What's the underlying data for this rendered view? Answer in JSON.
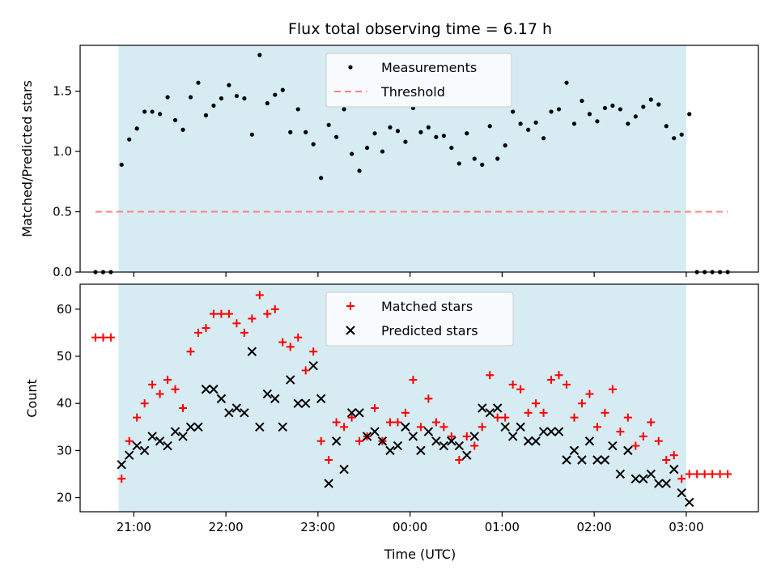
{
  "chart_data": [
    {
      "type": "scatter",
      "title": "Flux total observing time = 6.17 h",
      "xlabel": "",
      "ylabel": "Matched/Predicted stars",
      "xlim": [
        "20:25",
        "03:47"
      ],
      "ylim": [
        0,
        1.88
      ],
      "yticks": [
        0.0,
        0.5,
        1.0,
        1.5
      ],
      "ytick_labels": [
        "0.0",
        "0.5",
        "1.0",
        "1.5"
      ],
      "shaded_span": [
        "20:50",
        "03:00"
      ],
      "shade_color": "#add8e6",
      "legend_position": "top-center",
      "series": [
        {
          "name": "Measurements",
          "style": "dot",
          "color": "#000000",
          "points": [
            [
              "20:35",
              0
            ],
            [
              "20:40",
              0
            ],
            [
              "20:45",
              0
            ],
            [
              "20:52",
              0.89
            ],
            [
              "20:57",
              1.1
            ],
            [
              "21:02",
              1.19
            ],
            [
              "21:07",
              1.33
            ],
            [
              "21:12",
              1.33
            ],
            [
              "21:17",
              1.31
            ],
            [
              "21:22",
              1.45
            ],
            [
              "21:27",
              1.26
            ],
            [
              "21:32",
              1.18
            ],
            [
              "21:37",
              1.45
            ],
            [
              "21:42",
              1.57
            ],
            [
              "21:47",
              1.3
            ],
            [
              "21:52",
              1.38
            ],
            [
              "21:57",
              1.44
            ],
            [
              "22:02",
              1.55
            ],
            [
              "22:07",
              1.46
            ],
            [
              "22:12",
              1.44
            ],
            [
              "22:17",
              1.14
            ],
            [
              "22:22",
              1.8
            ],
            [
              "22:27",
              1.4
            ],
            [
              "22:32",
              1.47
            ],
            [
              "22:37",
              1.51
            ],
            [
              "22:42",
              1.16
            ],
            [
              "22:47",
              1.35
            ],
            [
              "22:52",
              1.16
            ],
            [
              "22:57",
              1.06
            ],
            [
              "23:02",
              0.78
            ],
            [
              "23:07",
              1.22
            ],
            [
              "23:12",
              1.12
            ],
            [
              "23:17",
              1.35
            ],
            [
              "23:22",
              0.98
            ],
            [
              "23:27",
              0.84
            ],
            [
              "23:32",
              1.03
            ],
            [
              "23:37",
              1.15
            ],
            [
              "23:42",
              1.0
            ],
            [
              "23:47",
              1.2
            ],
            [
              "23:52",
              1.17
            ],
            [
              "23:57",
              1.08
            ],
            [
              "00:02",
              1.36
            ],
            [
              "00:07",
              1.16
            ],
            [
              "00:12",
              1.2
            ],
            [
              "00:17",
              1.12
            ],
            [
              "00:22",
              1.13
            ],
            [
              "00:27",
              1.03
            ],
            [
              "00:32",
              0.9
            ],
            [
              "00:37",
              1.15
            ],
            [
              "00:42",
              0.94
            ],
            [
              "00:47",
              0.89
            ],
            [
              "00:52",
              1.21
            ],
            [
              "00:57",
              0.94
            ],
            [
              "01:02",
              1.05
            ],
            [
              "01:07",
              1.33
            ],
            [
              "01:12",
              1.23
            ],
            [
              "01:17",
              1.18
            ],
            [
              "01:22",
              1.24
            ],
            [
              "01:27",
              1.11
            ],
            [
              "01:32",
              1.33
            ],
            [
              "01:37",
              1.35
            ],
            [
              "01:42",
              1.57
            ],
            [
              "01:47",
              1.23
            ],
            [
              "01:52",
              1.42
            ],
            [
              "01:57",
              1.31
            ],
            [
              "02:02",
              1.25
            ],
            [
              "02:07",
              1.36
            ],
            [
              "02:12",
              1.38
            ],
            [
              "02:17",
              1.35
            ],
            [
              "02:22",
              1.23
            ],
            [
              "02:27",
              1.29
            ],
            [
              "02:32",
              1.37
            ],
            [
              "02:37",
              1.43
            ],
            [
              "02:42",
              1.39
            ],
            [
              "02:47",
              1.21
            ],
            [
              "02:52",
              1.11
            ],
            [
              "02:57",
              1.14
            ],
            [
              "03:02",
              1.31
            ],
            [
              "03:07",
              0
            ],
            [
              "03:12",
              0
            ],
            [
              "03:17",
              0
            ],
            [
              "03:22",
              0
            ],
            [
              "03:27",
              0
            ]
          ]
        },
        {
          "name": "Threshold",
          "style": "dashed-line",
          "color": "#ff8080",
          "points": [
            [
              "20:35",
              0.5
            ],
            [
              "03:27",
              0.5
            ]
          ]
        }
      ]
    },
    {
      "type": "scatter",
      "title": "",
      "xlabel": "Time (UTC)",
      "ylabel": "Count",
      "xlim": [
        "20:25",
        "03:47"
      ],
      "ylim": [
        17,
        65.3
      ],
      "yticks": [
        20,
        30,
        40,
        50,
        60
      ],
      "ytick_labels": [
        "20",
        "30",
        "40",
        "50",
        "60"
      ],
      "xticks": [
        "21:00",
        "22:00",
        "23:00",
        "00:00",
        "01:00",
        "02:00",
        "03:00"
      ],
      "xtick_labels": [
        "21:00",
        "22:00",
        "23:00",
        "00:00",
        "01:00",
        "02:00",
        "03:00"
      ],
      "shaded_span": [
        "20:50",
        "03:00"
      ],
      "shade_color": "#add8e6",
      "legend_position": "top-center",
      "series": [
        {
          "name": "Matched stars",
          "style": "plus",
          "color": "#ff0000",
          "points": [
            [
              "20:35",
              54
            ],
            [
              "20:40",
              54
            ],
            [
              "20:45",
              54
            ],
            [
              "20:52",
              24
            ],
            [
              "20:57",
              32
            ],
            [
              "21:02",
              37
            ],
            [
              "21:07",
              40
            ],
            [
              "21:12",
              44
            ],
            [
              "21:17",
              42
            ],
            [
              "21:22",
              45
            ],
            [
              "21:27",
              43
            ],
            [
              "21:32",
              39
            ],
            [
              "21:37",
              51
            ],
            [
              "21:42",
              55
            ],
            [
              "21:47",
              56
            ],
            [
              "21:52",
              59
            ],
            [
              "21:57",
              59
            ],
            [
              "22:02",
              59
            ],
            [
              "22:07",
              57
            ],
            [
              "22:12",
              55
            ],
            [
              "22:17",
              58
            ],
            [
              "22:22",
              63
            ],
            [
              "22:27",
              59
            ],
            [
              "22:32",
              60
            ],
            [
              "22:37",
              53
            ],
            [
              "22:42",
              52
            ],
            [
              "22:47",
              54
            ],
            [
              "22:52",
              47
            ],
            [
              "22:57",
              51
            ],
            [
              "23:02",
              32
            ],
            [
              "23:07",
              28
            ],
            [
              "23:12",
              36
            ],
            [
              "23:17",
              35
            ],
            [
              "23:22",
              37
            ],
            [
              "23:27",
              32
            ],
            [
              "23:32",
              33
            ],
            [
              "23:37",
              39
            ],
            [
              "23:42",
              32
            ],
            [
              "23:47",
              36
            ],
            [
              "23:52",
              36
            ],
            [
              "23:57",
              38
            ],
            [
              "00:02",
              45
            ],
            [
              "00:07",
              35
            ],
            [
              "00:12",
              41
            ],
            [
              "00:17",
              36
            ],
            [
              "00:22",
              35
            ],
            [
              "00:27",
              33
            ],
            [
              "00:32",
              28
            ],
            [
              "00:37",
              33
            ],
            [
              "00:42",
              31
            ],
            [
              "00:47",
              35
            ],
            [
              "00:52",
              46
            ],
            [
              "00:57",
              37
            ],
            [
              "01:02",
              37
            ],
            [
              "01:07",
              44
            ],
            [
              "01:12",
              43
            ],
            [
              "01:17",
              38
            ],
            [
              "01:22",
              40
            ],
            [
              "01:27",
              38
            ],
            [
              "01:32",
              45
            ],
            [
              "01:37",
              46
            ],
            [
              "01:42",
              44
            ],
            [
              "01:47",
              37
            ],
            [
              "01:52",
              40
            ],
            [
              "01:57",
              42
            ],
            [
              "02:02",
              35
            ],
            [
              "02:07",
              38
            ],
            [
              "02:12",
              43
            ],
            [
              "02:17",
              34
            ],
            [
              "02:22",
              37
            ],
            [
              "02:27",
              31
            ],
            [
              "02:32",
              33
            ],
            [
              "02:37",
              36
            ],
            [
              "02:42",
              32
            ],
            [
              "02:47",
              28
            ],
            [
              "02:52",
              29
            ],
            [
              "02:57",
              24
            ],
            [
              "03:02",
              25
            ],
            [
              "03:07",
              25
            ],
            [
              "03:12",
              25
            ],
            [
              "03:17",
              25
            ],
            [
              "03:22",
              25
            ],
            [
              "03:27",
              25
            ]
          ]
        },
        {
          "name": "Predicted stars",
          "style": "x",
          "color": "#000000",
          "points": [
            [
              "20:52",
              27
            ],
            [
              "20:57",
              29
            ],
            [
              "21:02",
              31
            ],
            [
              "21:07",
              30
            ],
            [
              "21:12",
              33
            ],
            [
              "21:17",
              32
            ],
            [
              "21:22",
              31
            ],
            [
              "21:27",
              34
            ],
            [
              "21:32",
              33
            ],
            [
              "21:37",
              35
            ],
            [
              "21:42",
              35
            ],
            [
              "21:47",
              43
            ],
            [
              "21:52",
              43
            ],
            [
              "21:57",
              41
            ],
            [
              "22:02",
              38
            ],
            [
              "22:07",
              39
            ],
            [
              "22:12",
              38
            ],
            [
              "22:17",
              51
            ],
            [
              "22:22",
              35
            ],
            [
              "22:27",
              42
            ],
            [
              "22:32",
              41
            ],
            [
              "22:37",
              35
            ],
            [
              "22:42",
              45
            ],
            [
              "22:47",
              40
            ],
            [
              "22:52",
              40
            ],
            [
              "22:57",
              48
            ],
            [
              "23:02",
              41
            ],
            [
              "23:07",
              23
            ],
            [
              "23:12",
              32
            ],
            [
              "23:17",
              26
            ],
            [
              "23:22",
              38
            ],
            [
              "23:27",
              38
            ],
            [
              "23:32",
              33
            ],
            [
              "23:37",
              34
            ],
            [
              "23:42",
              32
            ],
            [
              "23:47",
              30
            ],
            [
              "23:52",
              31
            ],
            [
              "23:57",
              35
            ],
            [
              "00:02",
              33
            ],
            [
              "00:07",
              30
            ],
            [
              "00:12",
              34
            ],
            [
              "00:17",
              32
            ],
            [
              "00:22",
              31
            ],
            [
              "00:27",
              32
            ],
            [
              "00:32",
              31
            ],
            [
              "00:37",
              29
            ],
            [
              "00:42",
              33
            ],
            [
              "00:47",
              39
            ],
            [
              "00:52",
              38
            ],
            [
              "00:57",
              39
            ],
            [
              "01:02",
              35
            ],
            [
              "01:07",
              33
            ],
            [
              "01:12",
              35
            ],
            [
              "01:17",
              32
            ],
            [
              "01:22",
              32
            ],
            [
              "01:27",
              34
            ],
            [
              "01:32",
              34
            ],
            [
              "01:37",
              34
            ],
            [
              "01:42",
              28
            ],
            [
              "01:47",
              30
            ],
            [
              "01:52",
              28
            ],
            [
              "01:57",
              32
            ],
            [
              "02:02",
              28
            ],
            [
              "02:07",
              28
            ],
            [
              "02:12",
              31
            ],
            [
              "02:17",
              25
            ],
            [
              "02:22",
              30
            ],
            [
              "02:27",
              24
            ],
            [
              "02:32",
              24
            ],
            [
              "02:37",
              25
            ],
            [
              "02:42",
              23
            ],
            [
              "02:47",
              23
            ],
            [
              "02:52",
              26
            ],
            [
              "02:57",
              21
            ],
            [
              "03:02",
              19
            ]
          ]
        }
      ]
    }
  ]
}
